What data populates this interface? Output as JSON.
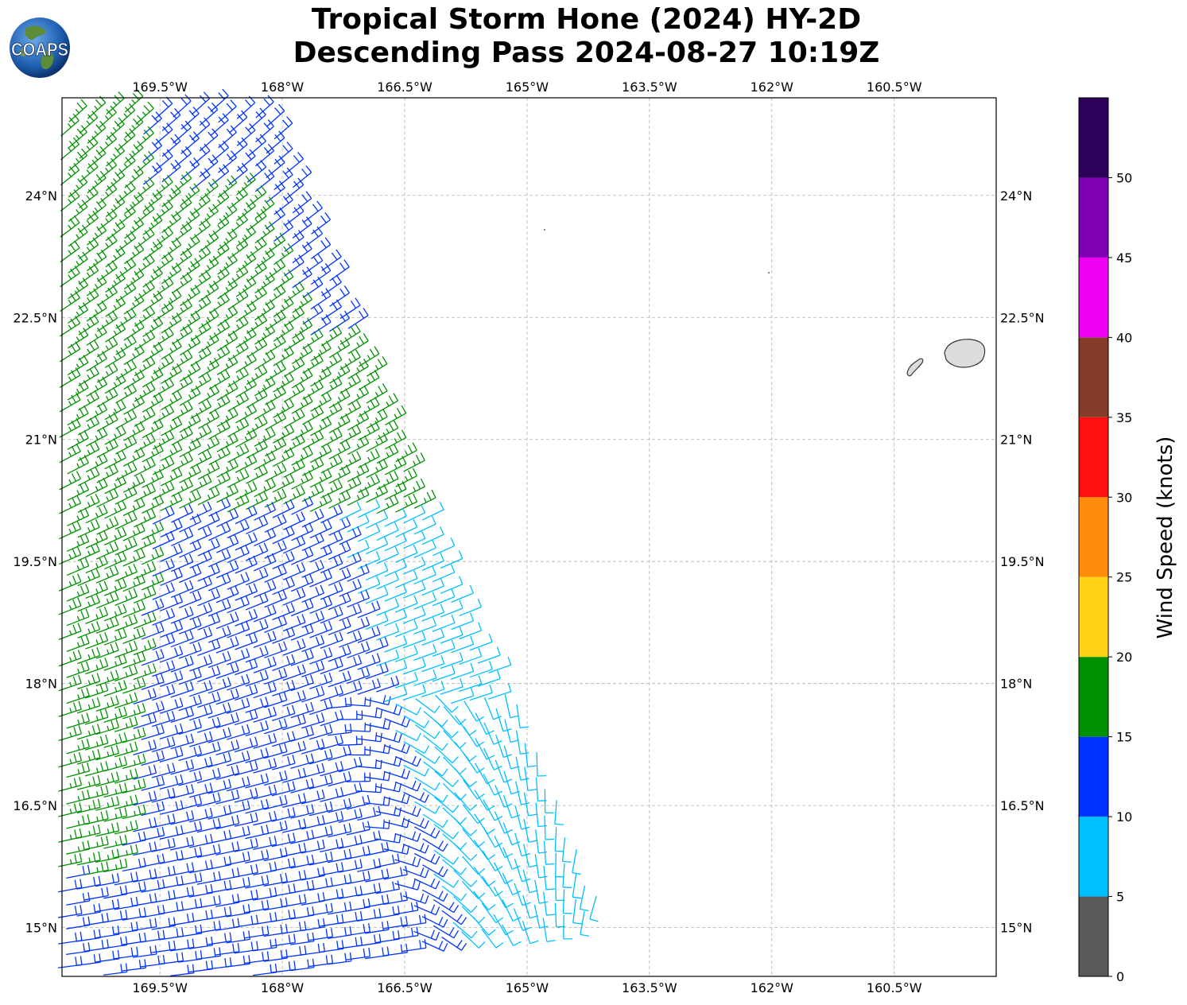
{
  "title": {
    "line1": "Tropical Storm Hone (2024) HY-2D",
    "line2": "Descending Pass 2024-08-27 10:19Z"
  },
  "logo": {
    "text": "COAPS"
  },
  "map": {
    "lon_labels": [
      "169.5°W",
      "168°W",
      "166.5°W",
      "165°W",
      "163.5°W",
      "162°W",
      "160.5°W"
    ],
    "lon_values": [
      -169.5,
      -168,
      -166.5,
      -165,
      -163.5,
      -162,
      -160.5
    ],
    "lat_labels": [
      "24°N",
      "22.5°N",
      "21°N",
      "19.5°N",
      "18°N",
      "16.5°N",
      "15°N"
    ],
    "lat_values": [
      24,
      22.5,
      21,
      19.5,
      18,
      16.5,
      15
    ],
    "lon_range": [
      -170.7,
      -159.25
    ],
    "lat_range": [
      14.4,
      25.2
    ],
    "gridlines": true
  },
  "colorbar": {
    "label": "Wind Speed (knots)",
    "tick_labels": [
      "0",
      "5",
      "10",
      "15",
      "20",
      "25",
      "30",
      "35",
      "40",
      "45",
      "50"
    ],
    "bins": [
      {
        "from": 0,
        "to": 5,
        "color": "#595959"
      },
      {
        "from": 5,
        "to": 10,
        "color": "#00bfff"
      },
      {
        "from": 10,
        "to": 15,
        "color": "#0033ff"
      },
      {
        "from": 15,
        "to": 20,
        "color": "#009100"
      },
      {
        "from": 20,
        "to": 25,
        "color": "#ffd414"
      },
      {
        "from": 25,
        "to": 30,
        "color": "#ff8c0a"
      },
      {
        "from": 30,
        "to": 35,
        "color": "#ff1010"
      },
      {
        "from": 35,
        "to": 40,
        "color": "#823c28"
      },
      {
        "from": 40,
        "to": 45,
        "color": "#f000f0"
      },
      {
        "from": 45,
        "to": 50,
        "color": "#8200b4"
      },
      {
        "from": 50,
        "to": 55,
        "color": "#2d005a"
      }
    ]
  },
  "colors": {
    "barb_green": "#009100",
    "barb_blue": "#0033ff",
    "barb_cyan": "#00bfff",
    "land": "#dcdcdc"
  }
}
